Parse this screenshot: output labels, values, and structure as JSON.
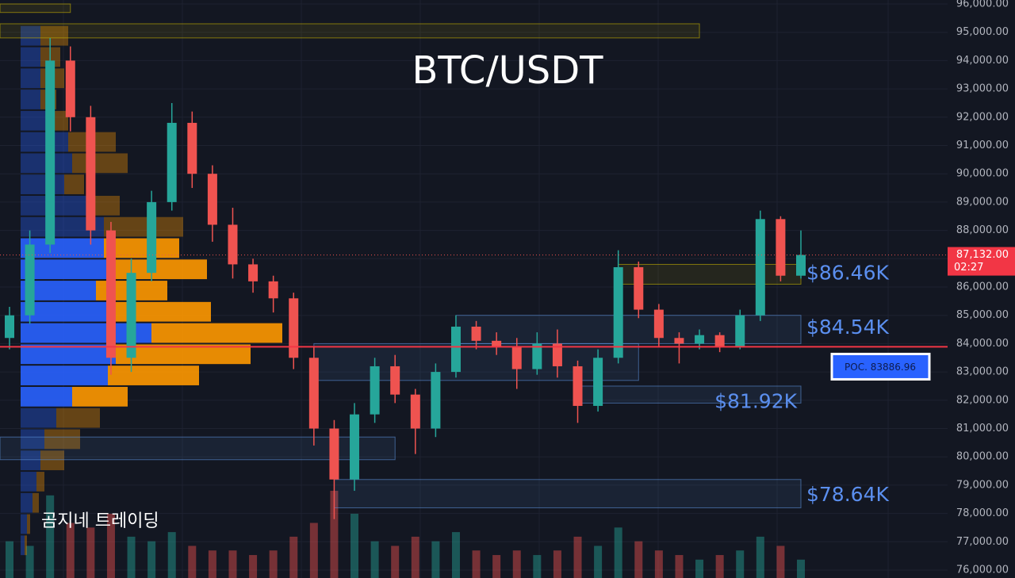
{
  "chart_data": {
    "type": "candlestick",
    "title": "BTC/USDT",
    "watermark": "곰지네 트레이딩",
    "ylim": [
      76000,
      96000
    ],
    "yticks": [
      {
        "value": 76000,
        "label": "76,000.00"
      },
      {
        "value": 77000,
        "label": "77,000.00"
      },
      {
        "value": 78000,
        "label": "78,000.00"
      },
      {
        "value": 79000,
        "label": "79,000.00"
      },
      {
        "value": 80000,
        "label": "80,000.00"
      },
      {
        "value": 81000,
        "label": "81,000.00"
      },
      {
        "value": 82000,
        "label": "82,000.00"
      },
      {
        "value": 83000,
        "label": "83,000.00"
      },
      {
        "value": 84000,
        "label": "84,000.00"
      },
      {
        "value": 85000,
        "label": "85,000.00"
      },
      {
        "value": 86000,
        "label": "86,000.00"
      },
      {
        "value": 87000,
        "label": "87,000.00"
      },
      {
        "value": 88000,
        "label": "88,000.00"
      },
      {
        "value": 89000,
        "label": "89,000.00"
      },
      {
        "value": 90000,
        "label": "90,000.00"
      },
      {
        "value": 91000,
        "label": "91,000.00"
      },
      {
        "value": 92000,
        "label": "92,000.00"
      },
      {
        "value": 93000,
        "label": "93,000.00"
      },
      {
        "value": 94000,
        "label": "94,000.00"
      },
      {
        "value": 95000,
        "label": "95,000.00"
      },
      {
        "value": 96000,
        "label": "96,000.00"
      }
    ],
    "grid": true,
    "up_color": "#26a69a",
    "down_color": "#ef5350",
    "open": [
      84200,
      85000,
      87500,
      94000,
      92000,
      88000,
      83500,
      86500,
      89000,
      91800,
      90000,
      88200,
      86800,
      86200,
      85600,
      83500,
      81000,
      79200,
      81500,
      83200,
      82200,
      81000,
      83000,
      84600,
      84100,
      83900,
      83100,
      84000,
      83200,
      81800,
      83500,
      86700,
      85200,
      84200,
      84000,
      84300,
      83900,
      85000,
      88400,
      86400
    ],
    "high": [
      85300,
      88000,
      94800,
      94500,
      92400,
      88300,
      87000,
      89400,
      92500,
      92200,
      90300,
      88800,
      87000,
      86400,
      85800,
      83900,
      81300,
      81900,
      83500,
      83600,
      82400,
      83300,
      85000,
      84800,
      84400,
      84200,
      84400,
      84500,
      83400,
      83800,
      87300,
      86900,
      85400,
      84400,
      84500,
      84400,
      85200,
      88700,
      88500,
      88000
    ],
    "low": [
      83800,
      84700,
      87200,
      91500,
      87500,
      82900,
      83000,
      86200,
      88700,
      89500,
      87600,
      86300,
      85800,
      85100,
      83100,
      80400,
      77800,
      78800,
      81200,
      81900,
      80100,
      80700,
      82800,
      83800,
      83600,
      82400,
      82900,
      82800,
      81200,
      81600,
      83300,
      84900,
      83900,
      83300,
      83800,
      83700,
      83800,
      84800,
      86200,
      86300
    ],
    "close": [
      85000,
      87500,
      94000,
      92000,
      88000,
      83500,
      86500,
      89000,
      91800,
      90000,
      88200,
      86800,
      86200,
      85600,
      83500,
      81000,
      79200,
      81500,
      83200,
      82200,
      81000,
      83000,
      84600,
      84100,
      83900,
      83100,
      84000,
      83200,
      81800,
      83500,
      86700,
      85200,
      84200,
      84000,
      84300,
      83900,
      85000,
      88400,
      86400,
      87132
    ],
    "volume": [
      40,
      35,
      90,
      60,
      55,
      70,
      45,
      40,
      50,
      35,
      30,
      30,
      25,
      30,
      45,
      60,
      95,
      70,
      40,
      35,
      45,
      40,
      50,
      30,
      25,
      30,
      25,
      30,
      45,
      35,
      55,
      40,
      30,
      25,
      20,
      25,
      30,
      45,
      35,
      20
    ],
    "volume_profile": {
      "bins": [
        76500,
        77250,
        78000,
        78750,
        79500,
        80250,
        81000,
        81750,
        82500,
        83250,
        84000,
        84750,
        85500,
        86250,
        87000,
        87750,
        88500,
        89250,
        90000,
        90750,
        91500,
        92250,
        93000,
        93750,
        94500,
        95250
      ],
      "up": [
        5,
        8,
        15,
        20,
        25,
        30,
        45,
        65,
        110,
        120,
        165,
        110,
        95,
        110,
        105,
        105,
        85,
        55,
        65,
        60,
        40,
        25,
        25,
        25,
        25
      ],
      "down": [
        3,
        4,
        8,
        10,
        30,
        45,
        55,
        70,
        115,
        170,
        165,
        130,
        90,
        125,
        95,
        100,
        40,
        25,
        70,
        60,
        20,
        20,
        30,
        25,
        35
      ],
      "value_area": [
        81750,
        87750
      ],
      "up_color": "#2962ff",
      "down_color": "#ff9800"
    },
    "zones": [
      {
        "low": 95700,
        "high": 96000,
        "from": 0,
        "to": 3,
        "color": "#c8b400"
      },
      {
        "low": 94800,
        "high": 95300,
        "from": 0,
        "to": 34,
        "color": "#c8b400"
      },
      {
        "low": 86100,
        "high": 86800,
        "from": 30,
        "to": 39,
        "color": "#c8b400"
      },
      {
        "low": 84000,
        "high": 85000,
        "from": 22,
        "to": 39,
        "color": "#5b8fd9"
      },
      {
        "low": 82700,
        "high": 84000,
        "from": 15,
        "to": 31,
        "color": "#5b8fd9"
      },
      {
        "low": 81900,
        "high": 82500,
        "from": 28,
        "to": 39,
        "color": "#5b8fd9"
      },
      {
        "low": 79900,
        "high": 80700,
        "from": 0,
        "to": 19,
        "color": "#5b8fd9"
      },
      {
        "low": 78200,
        "high": 79200,
        "from": 16,
        "to": 39,
        "color": "#5b8fd9"
      }
    ],
    "levels": [
      {
        "value": 86460,
        "label": "$86.46K",
        "anchor": "start"
      },
      {
        "value": 84540,
        "label": "$84.54K",
        "anchor": "start"
      },
      {
        "value": 81920,
        "label": "$81.92K",
        "anchor": "end"
      },
      {
        "value": 78640,
        "label": "$78.64K",
        "anchor": "start"
      }
    ],
    "poc": {
      "value": 83886.96,
      "label": "POC. 83886.96"
    },
    "last_price": {
      "value": 87132,
      "label": "87,132.00"
    },
    "countdown": "02:27"
  }
}
